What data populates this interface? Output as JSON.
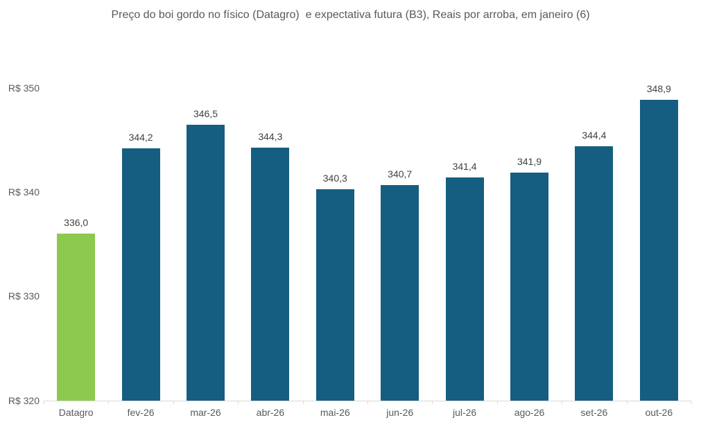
{
  "chart_data": {
    "type": "bar",
    "title": "Preço do boi gordo no físico (Datagro)  e expectativa futura (B3), Reais por arroba, em janeiro (6)",
    "categories": [
      "Datagro",
      "fev-26",
      "mar-26",
      "abr-26",
      "mai-26",
      "jun-26",
      "jul-26",
      "ago-26",
      "set-26",
      "out-26"
    ],
    "values": [
      336.0,
      344.2,
      346.5,
      344.3,
      340.3,
      340.7,
      341.4,
      341.9,
      344.4,
      348.9
    ],
    "value_labels": [
      "336,0",
      "344,2",
      "346,5",
      "344,3",
      "340,3",
      "340,7",
      "341,4",
      "341,9",
      "344,4",
      "348,9"
    ],
    "xlabel": "",
    "ylabel": "",
    "ylim": [
      320,
      350
    ],
    "y_ticks": [
      {
        "value": 320,
        "label": "R$ 320"
      },
      {
        "value": 330,
        "label": "R$ 330"
      },
      {
        "value": 340,
        "label": "R$ 340"
      },
      {
        "value": 350,
        "label": "R$ 350"
      }
    ],
    "grid": false,
    "legend": null,
    "highlight_index": 0,
    "colors": {
      "highlight_bar": "#8dc94f",
      "default_bar": "#165e81",
      "axis_line": "#d9d9d9",
      "axis_text": "#595959",
      "data_label_text": "#404040",
      "title_text": "#595959",
      "background": "#ffffff"
    }
  }
}
